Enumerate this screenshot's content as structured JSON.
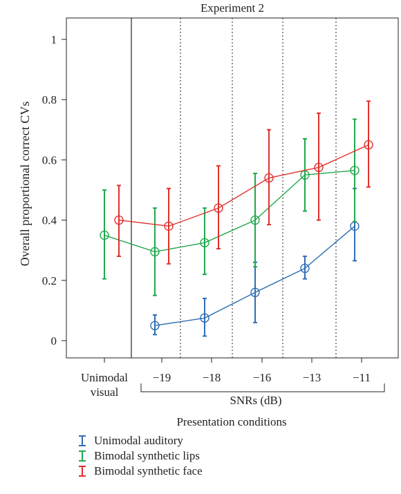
{
  "chart_data": {
    "type": "line",
    "title": "Experiment 2",
    "ylabel": "Overall proportional correct CVs",
    "xlabel": "Presentation conditions",
    "snr_label": "SNRs (dB)",
    "ylim": [
      0,
      1
    ],
    "yticks": [
      "0",
      "0.2",
      "0.4",
      "0.6",
      "0.8",
      "1"
    ],
    "categories": [
      "Unimodal visual",
      "−19",
      "−18",
      "−16",
      "−13",
      "−11"
    ],
    "category_label_lines": [
      [
        "Unimodal",
        "visual"
      ],
      [
        "−19"
      ],
      [
        "−18"
      ],
      [
        "−16"
      ],
      [
        "−13"
      ],
      [
        "−11"
      ]
    ],
    "grid": false,
    "legend_position": "bottom",
    "series": [
      {
        "name": "Unimodal auditory",
        "color": "#2e6db4",
        "points": [
          {
            "cat": 1,
            "y": 0.05,
            "lo": 0.02,
            "hi": 0.085
          },
          {
            "cat": 2,
            "y": 0.075,
            "lo": 0.015,
            "hi": 0.14
          },
          {
            "cat": 3,
            "y": 0.16,
            "lo": 0.06,
            "hi": 0.26
          },
          {
            "cat": 4,
            "y": 0.24,
            "lo": 0.205,
            "hi": 0.28
          },
          {
            "cat": 5,
            "y": 0.38,
            "lo": 0.265,
            "hi": 0.505
          }
        ]
      },
      {
        "name": "Bimodal synthetic lips",
        "color": "#1fa84b",
        "points": [
          {
            "cat": 0,
            "y": 0.35,
            "lo": 0.205,
            "hi": 0.5
          },
          {
            "cat": 1,
            "y": 0.295,
            "lo": 0.15,
            "hi": 0.44
          },
          {
            "cat": 2,
            "y": 0.325,
            "lo": 0.22,
            "hi": 0.44
          },
          {
            "cat": 3,
            "y": 0.4,
            "lo": 0.245,
            "hi": 0.555
          },
          {
            "cat": 4,
            "y": 0.55,
            "lo": 0.43,
            "hi": 0.67
          },
          {
            "cat": 5,
            "y": 0.565,
            "lo": 0.395,
            "hi": 0.735
          }
        ]
      },
      {
        "name": "Bimodal synthetic face",
        "color": "#e0302c",
        "points": [
          {
            "cat": 0,
            "y": 0.4,
            "lo": 0.28,
            "hi": 0.515
          },
          {
            "cat": 1,
            "y": 0.38,
            "lo": 0.255,
            "hi": 0.505
          },
          {
            "cat": 2,
            "y": 0.44,
            "lo": 0.305,
            "hi": 0.58
          },
          {
            "cat": 3,
            "y": 0.54,
            "lo": 0.385,
            "hi": 0.7
          },
          {
            "cat": 4,
            "y": 0.575,
            "lo": 0.4,
            "hi": 0.755
          },
          {
            "cat": 5,
            "y": 0.65,
            "lo": 0.51,
            "hi": 0.795
          }
        ]
      }
    ]
  }
}
